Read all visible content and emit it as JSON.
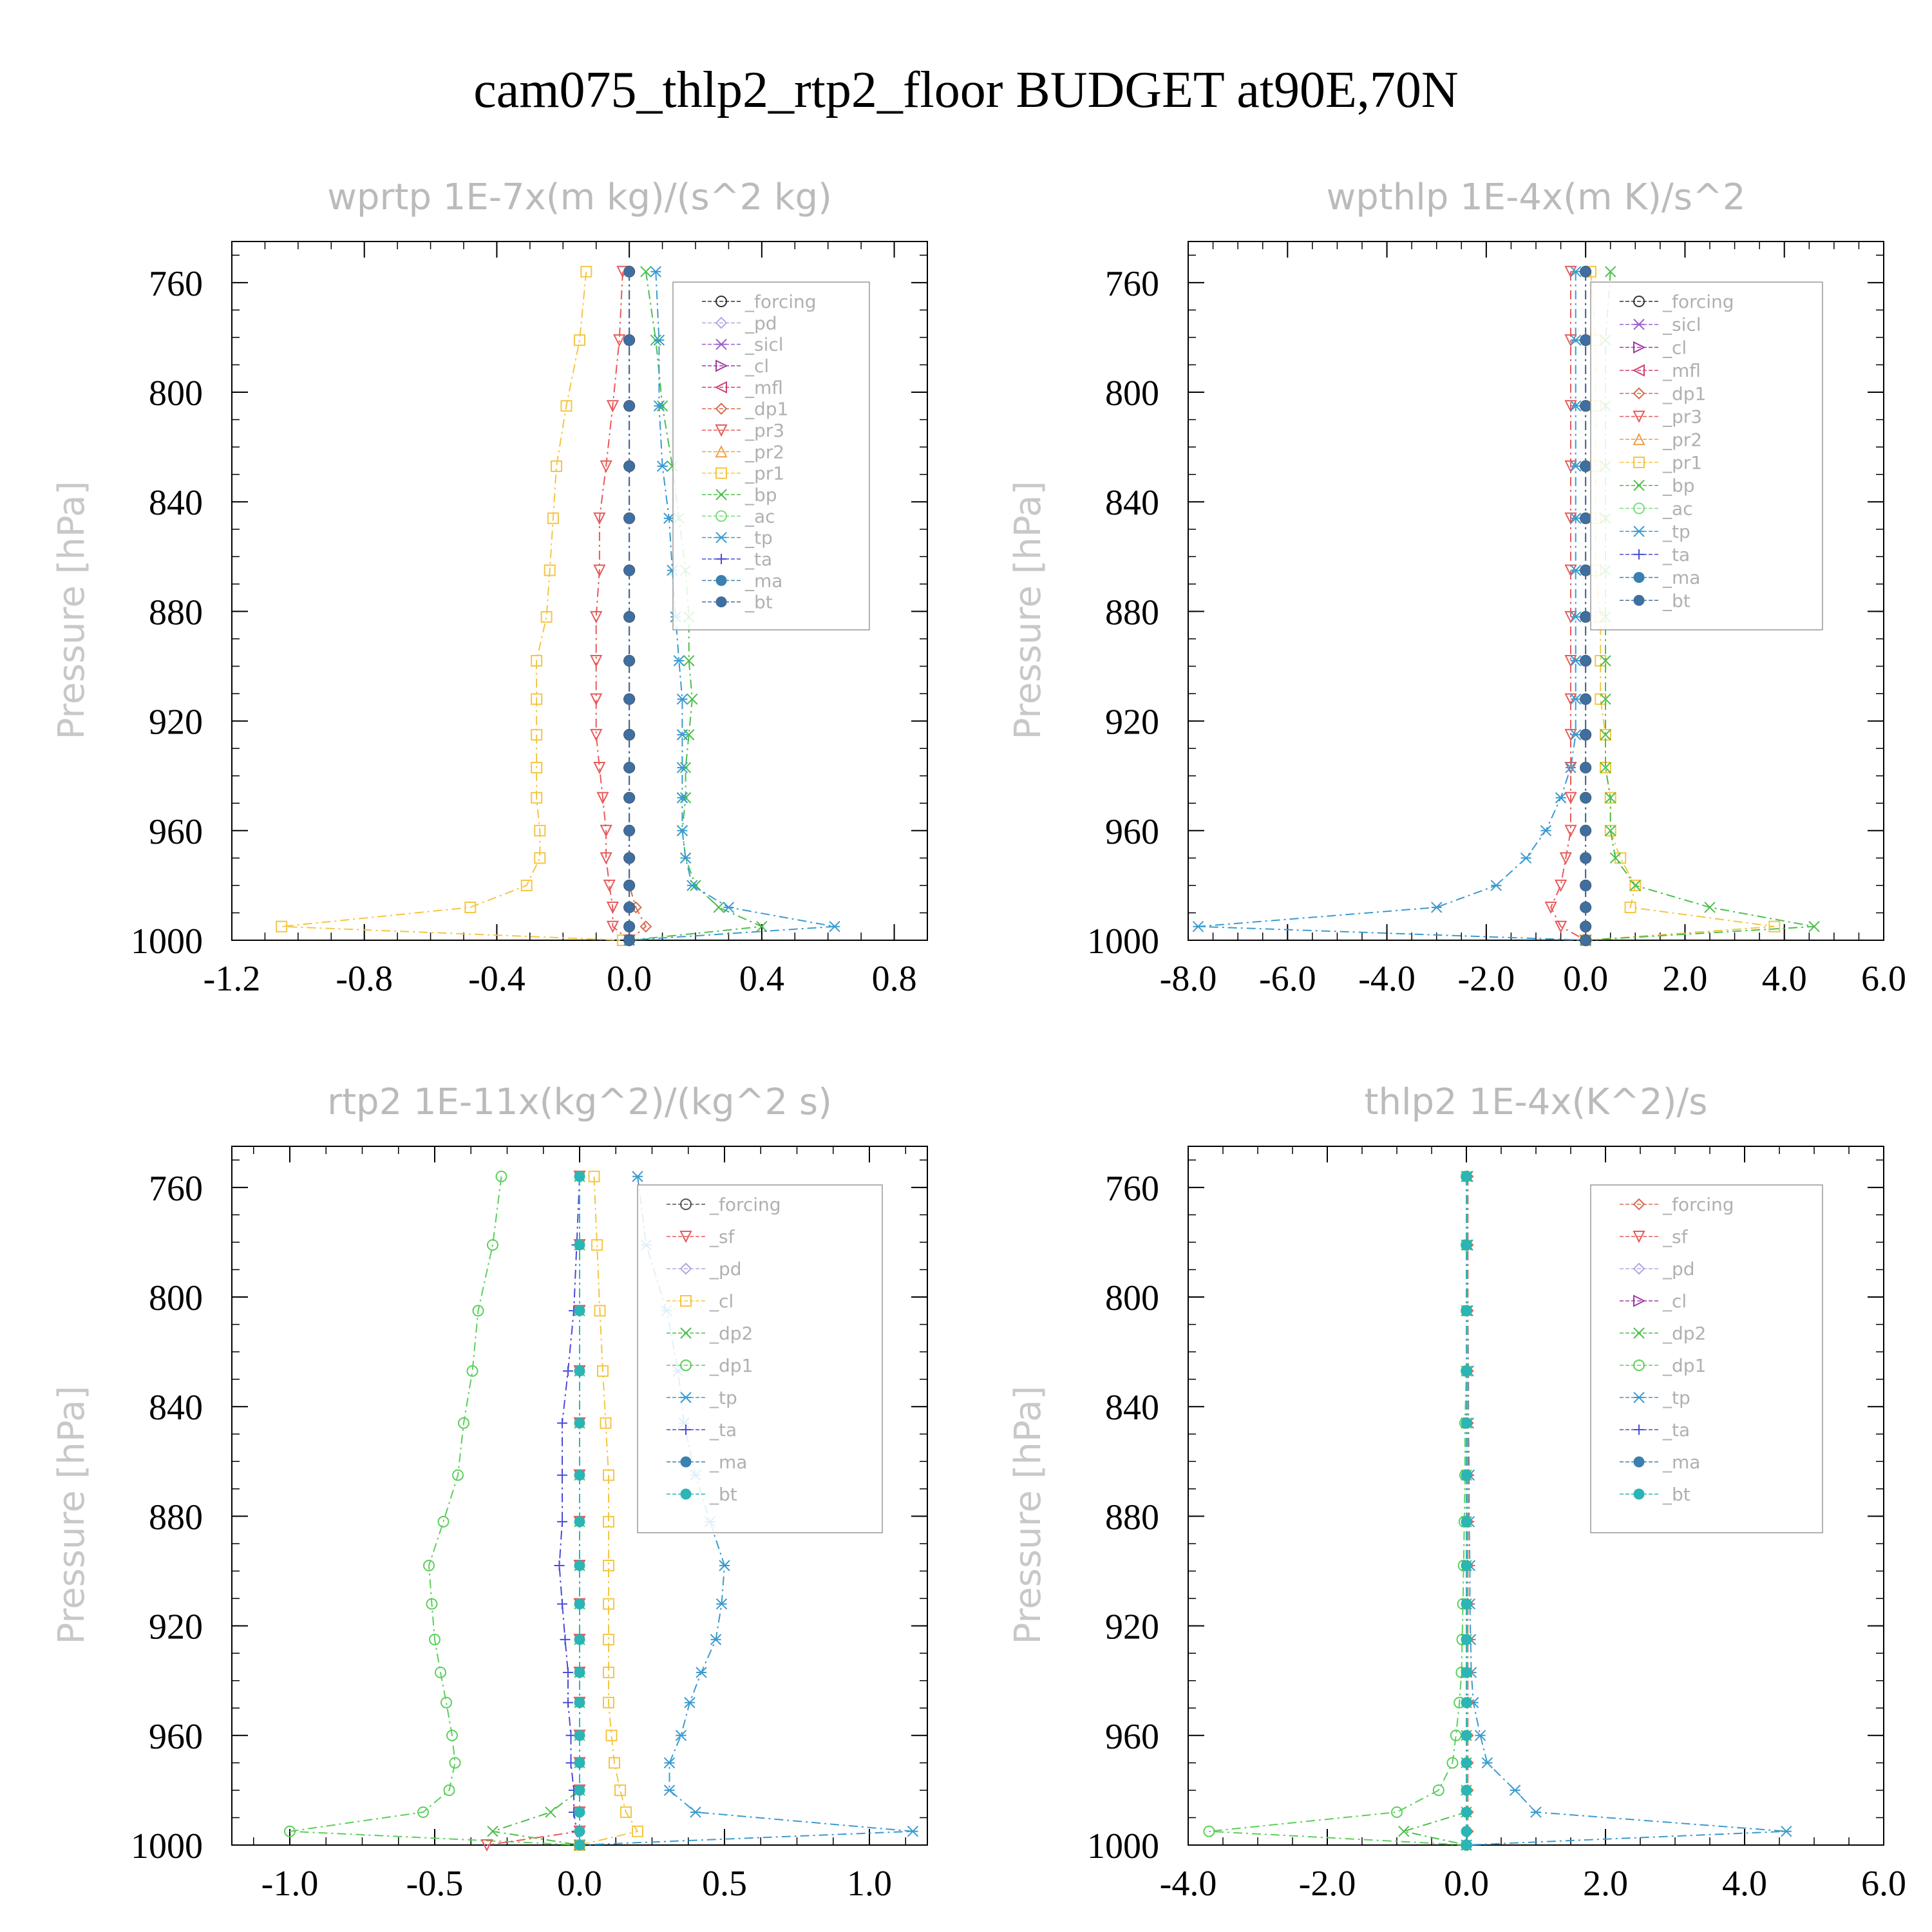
{
  "figure_title": "cam075_thlp2_rtp2_floor  BUDGET at90E,70N",
  "chart_data": [
    {
      "type": "line",
      "title": "wprtp   1E-7x(m kg)/(s^2 kg)",
      "ylabel": "Pressure  [hPa]",
      "xlim": [
        -1.2,
        0.9
      ],
      "ylim": [
        1000,
        745
      ],
      "xticks": [
        -1.2,
        -0.8,
        -0.4,
        0.0,
        0.4,
        0.8
      ],
      "xtick_labels": [
        "-1.2",
        "-0.8",
        "-0.4",
        "0.0",
        "0.4",
        "0.8"
      ],
      "yticks": [
        760,
        800,
        840,
        880,
        920,
        960,
        1000
      ],
      "ytick_labels": [
        "760",
        "800",
        "840",
        "880",
        "920",
        "960",
        "1000"
      ],
      "pressure": [
        756,
        781,
        805,
        827,
        846,
        865,
        882,
        898,
        912,
        925,
        937,
        948,
        960,
        970,
        980,
        988,
        995,
        1000
      ],
      "legend": [
        "_forcing",
        "_pd",
        "_sicl",
        "_cl",
        "_mfl",
        "_dp1",
        "_pr3",
        "_pr2",
        "_pr1",
        "_bp",
        "_ac",
        "_tp",
        "_ta",
        "_ma",
        "_bt"
      ],
      "series": [
        {
          "name": "_pr1",
          "color": "#f5c542",
          "marker": "square",
          "values": [
            -0.13,
            -0.15,
            -0.19,
            -0.22,
            -0.23,
            -0.24,
            -0.25,
            -0.28,
            -0.28,
            -0.28,
            -0.28,
            -0.28,
            -0.27,
            -0.27,
            -0.31,
            -0.48,
            -1.05,
            -0.02
          ]
        },
        {
          "name": "_pr3",
          "color": "#e85a5a",
          "marker": "tri-down",
          "values": [
            -0.02,
            -0.03,
            -0.05,
            -0.07,
            -0.09,
            -0.09,
            -0.1,
            -0.1,
            -0.1,
            -0.1,
            -0.09,
            -0.08,
            -0.07,
            -0.07,
            -0.06,
            -0.05,
            -0.05,
            0.0
          ]
        },
        {
          "name": "_dp1",
          "color": "#d86a50",
          "marker": "diamond",
          "values": [
            0.0,
            0.0,
            0.0,
            0.0,
            0.0,
            0.0,
            0.0,
            0.0,
            0.0,
            0.0,
            0.0,
            0.0,
            0.0,
            0.0,
            0.0,
            0.02,
            0.05,
            0.0
          ]
        },
        {
          "name": "_bp",
          "color": "#4cbf4c",
          "marker": "x",
          "values": [
            0.05,
            0.08,
            0.1,
            0.13,
            0.15,
            0.17,
            0.18,
            0.18,
            0.19,
            0.18,
            0.17,
            0.17,
            0.16,
            0.17,
            0.2,
            0.27,
            0.4,
            0.0
          ]
        },
        {
          "name": "_tp",
          "color": "#3a9bd0",
          "marker": "asterisk",
          "values": [
            0.08,
            0.09,
            0.09,
            0.1,
            0.12,
            0.13,
            0.14,
            0.15,
            0.16,
            0.16,
            0.16,
            0.16,
            0.16,
            0.17,
            0.19,
            0.3,
            0.62,
            0.0
          ]
        },
        {
          "name": "_forcing",
          "color": "#333333",
          "marker": "circle",
          "values": [
            0.0,
            0.0,
            0.0,
            0.0,
            0.0,
            0.0,
            0.0,
            0.0,
            0.0,
            0.0,
            0.0,
            0.0,
            0.0,
            0.0,
            0.0,
            0.0,
            0.0,
            0.0
          ]
        },
        {
          "name": "_bt",
          "color": "#3f6fa0",
          "marker": "dot",
          "values": [
            0.0,
            0.0,
            0.0,
            0.0,
            0.0,
            0.0,
            0.0,
            0.0,
            0.0,
            0.0,
            0.0,
            0.0,
            0.0,
            0.0,
            0.0,
            0.0,
            0.0,
            0.0
          ]
        }
      ]
    },
    {
      "type": "line",
      "title": "wpthlp   1E-4x(m K)/s^2",
      "ylabel": "Pressure  [hPa]",
      "xlim": [
        -8.0,
        6.0
      ],
      "ylim": [
        1000,
        745
      ],
      "xticks": [
        -8.0,
        -6.0,
        -4.0,
        -2.0,
        0.0,
        2.0,
        4.0,
        6.0
      ],
      "xtick_labels": [
        "-8.0",
        "-6.0",
        "-4.0",
        "-2.0",
        "0.0",
        "2.0",
        "4.0",
        "6.0"
      ],
      "yticks": [
        760,
        800,
        840,
        880,
        920,
        960,
        1000
      ],
      "ytick_labels": [
        "760",
        "800",
        "840",
        "880",
        "920",
        "960",
        "1000"
      ],
      "pressure": [
        756,
        781,
        805,
        827,
        846,
        865,
        882,
        898,
        912,
        925,
        937,
        948,
        960,
        970,
        980,
        988,
        995,
        1000
      ],
      "legend": [
        "_forcing",
        "_sicl",
        "_cl",
        "_mfl",
        "_dp1",
        "_pr3",
        "_pr2",
        "_pr1",
        "_bp",
        "_ac",
        "_tp",
        "_ta",
        "_ma",
        "_bt"
      ],
      "series": [
        {
          "name": "_pr3",
          "color": "#e85a5a",
          "marker": "tri-down",
          "values": [
            -0.3,
            -0.3,
            -0.3,
            -0.3,
            -0.3,
            -0.3,
            -0.3,
            -0.3,
            -0.3,
            -0.3,
            -0.3,
            -0.3,
            -0.3,
            -0.4,
            -0.5,
            -0.7,
            -0.5,
            0.0
          ]
        },
        {
          "name": "_pr1",
          "color": "#f5c542",
          "marker": "square",
          "values": [
            0.1,
            0.2,
            0.2,
            0.2,
            0.2,
            0.2,
            0.3,
            0.3,
            0.3,
            0.4,
            0.4,
            0.5,
            0.5,
            0.7,
            1.0,
            0.9,
            3.8,
            0.0
          ]
        },
        {
          "name": "_bp",
          "color": "#4cbf4c",
          "marker": "x",
          "values": [
            0.5,
            0.4,
            0.4,
            0.4,
            0.4,
            0.4,
            0.4,
            0.4,
            0.4,
            0.4,
            0.4,
            0.5,
            0.5,
            0.6,
            1.0,
            2.5,
            4.6,
            0.0
          ]
        },
        {
          "name": "_tp",
          "color": "#3a9bd0",
          "marker": "asterisk",
          "values": [
            -0.2,
            -0.2,
            -0.2,
            -0.2,
            -0.2,
            -0.2,
            -0.2,
            -0.2,
            -0.2,
            -0.2,
            -0.3,
            -0.5,
            -0.8,
            -1.2,
            -1.8,
            -3.0,
            -7.8,
            0.0
          ]
        },
        {
          "name": "_forcing",
          "color": "#333333",
          "marker": "circle",
          "values": [
            0.0,
            0.0,
            0.0,
            0.0,
            0.0,
            0.0,
            0.0,
            0.0,
            0.0,
            0.0,
            0.0,
            0.0,
            0.0,
            0.0,
            0.0,
            0.0,
            0.0,
            0.0
          ]
        },
        {
          "name": "_bt",
          "color": "#3f6fa0",
          "marker": "dot",
          "values": [
            0.0,
            0.0,
            0.0,
            0.0,
            0.0,
            0.0,
            0.0,
            0.0,
            0.0,
            0.0,
            0.0,
            0.0,
            0.0,
            0.0,
            0.0,
            0.0,
            0.0,
            0.0
          ]
        }
      ]
    },
    {
      "type": "line",
      "title": "rtp2   1E-11x(kg^2)/(kg^2 s)",
      "ylabel": "Pressure  [hPa]",
      "xlim": [
        -1.2,
        1.2
      ],
      "ylim": [
        1000,
        745
      ],
      "xticks": [
        -1.0,
        -0.5,
        0.0,
        0.5,
        1.0
      ],
      "xtick_labels": [
        "-1.0",
        "-0.5",
        "0.0",
        "0.5",
        "1.0"
      ],
      "yticks": [
        760,
        800,
        840,
        880,
        920,
        960,
        1000
      ],
      "ytick_labels": [
        "760",
        "800",
        "840",
        "880",
        "920",
        "960",
        "1000"
      ],
      "pressure": [
        756,
        781,
        805,
        827,
        846,
        865,
        882,
        898,
        912,
        925,
        937,
        948,
        960,
        970,
        980,
        988,
        995,
        1000
      ],
      "legend": [
        "_forcing",
        "_sf",
        "_pd",
        "_cl",
        "_dp2",
        "_dp1",
        "_tp",
        "_ta",
        "_ma",
        "_bt"
      ],
      "series": [
        {
          "name": "_dp1",
          "color": "#5ccf5c",
          "marker": "circle",
          "values": [
            -0.27,
            -0.3,
            -0.35,
            -0.37,
            -0.4,
            -0.42,
            -0.47,
            -0.52,
            -0.51,
            -0.5,
            -0.48,
            -0.46,
            -0.44,
            -0.43,
            -0.45,
            -0.54,
            -1.0,
            0.0
          ]
        },
        {
          "name": "_dp2",
          "color": "#4cbf4c",
          "marker": "x",
          "values": [
            0.0,
            0.0,
            0.0,
            0.0,
            0.0,
            0.0,
            0.0,
            0.0,
            0.0,
            0.0,
            0.0,
            0.0,
            0.0,
            0.0,
            0.0,
            -0.1,
            -0.3,
            0.0
          ]
        },
        {
          "name": "_cl",
          "color": "#f5c542",
          "marker": "square",
          "values": [
            0.05,
            0.06,
            0.07,
            0.08,
            0.09,
            0.1,
            0.1,
            0.1,
            0.1,
            0.1,
            0.1,
            0.1,
            0.11,
            0.12,
            0.14,
            0.16,
            0.2,
            0.0
          ]
        },
        {
          "name": "_ta",
          "color": "#4a4ad8",
          "marker": "plus",
          "values": [
            0.0,
            -0.01,
            -0.02,
            -0.04,
            -0.06,
            -0.06,
            -0.06,
            -0.07,
            -0.06,
            -0.05,
            -0.04,
            -0.04,
            -0.03,
            -0.03,
            -0.02,
            -0.02,
            -0.01,
            0.0
          ]
        },
        {
          "name": "_tp",
          "color": "#3a9bd0",
          "marker": "asterisk",
          "values": [
            0.2,
            0.23,
            0.3,
            0.34,
            0.36,
            0.4,
            0.45,
            0.5,
            0.49,
            0.47,
            0.42,
            0.38,
            0.35,
            0.31,
            0.31,
            0.4,
            1.15,
            0.0
          ]
        },
        {
          "name": "_sf",
          "color": "#e85a5a",
          "marker": "tri-down",
          "values": [
            0.0,
            0.0,
            0.0,
            0.0,
            0.0,
            0.0,
            0.0,
            0.0,
            0.0,
            0.0,
            0.0,
            0.0,
            0.0,
            0.0,
            0.0,
            0.0,
            0.0,
            -0.32
          ]
        },
        {
          "name": "_bt",
          "color": "#2bb5b5",
          "marker": "dot",
          "values": [
            0.0,
            0.0,
            0.0,
            0.0,
            0.0,
            0.0,
            0.0,
            0.0,
            0.0,
            0.0,
            0.0,
            0.0,
            0.0,
            0.0,
            0.0,
            0.0,
            0.0,
            0.0
          ]
        }
      ]
    },
    {
      "type": "line",
      "title": "thlp2   1E-4x(K^2)/s",
      "ylabel": "Pressure  [hPa]",
      "xlim": [
        -4.0,
        6.0
      ],
      "ylim": [
        1000,
        745
      ],
      "xticks": [
        -4.0,
        -2.0,
        0.0,
        2.0,
        4.0,
        6.0
      ],
      "xtick_labels": [
        "-4.0",
        "-2.0",
        "0.0",
        "2.0",
        "4.0",
        "6.0"
      ],
      "yticks": [
        760,
        800,
        840,
        880,
        920,
        960,
        1000
      ],
      "ytick_labels": [
        "760",
        "800",
        "840",
        "880",
        "920",
        "960",
        "1000"
      ],
      "pressure": [
        756,
        781,
        805,
        827,
        846,
        865,
        882,
        898,
        912,
        925,
        937,
        948,
        960,
        970,
        980,
        988,
        995,
        1000
      ],
      "legend": [
        "_forcing",
        "_sf",
        "_pd",
        "_cl",
        "_dp2",
        "_dp1",
        "_tp",
        "_ta",
        "_ma",
        "_bt"
      ],
      "series": [
        {
          "name": "_dp1",
          "color": "#5ccf5c",
          "marker": "circle",
          "values": [
            0.0,
            0.0,
            0.0,
            0.0,
            -0.02,
            -0.02,
            -0.03,
            -0.04,
            -0.05,
            -0.06,
            -0.07,
            -0.1,
            -0.15,
            -0.2,
            -0.4,
            -1.0,
            -3.7,
            0.0
          ]
        },
        {
          "name": "_dp2",
          "color": "#4cbf4c",
          "marker": "x",
          "values": [
            0.0,
            0.0,
            0.0,
            0.0,
            0.0,
            0.0,
            0.0,
            0.0,
            0.0,
            0.0,
            0.0,
            0.0,
            0.0,
            0.0,
            0.0,
            0.0,
            -0.9,
            0.0
          ]
        },
        {
          "name": "_tp",
          "color": "#3a9bd0",
          "marker": "asterisk",
          "values": [
            0.02,
            0.02,
            0.02,
            0.03,
            0.03,
            0.04,
            0.04,
            0.05,
            0.05,
            0.06,
            0.07,
            0.1,
            0.2,
            0.3,
            0.7,
            1.0,
            4.6,
            0.0
          ]
        },
        {
          "name": "_forcing",
          "color": "#d86a50",
          "marker": "diamond",
          "values": [
            0.02,
            0.02,
            0.02,
            0.02,
            0.02,
            0.02,
            0.02,
            0.02,
            0.02,
            0.02,
            0.02,
            0.02,
            0.02,
            0.02,
            0.02,
            0.02,
            0.02,
            0.0
          ]
        },
        {
          "name": "_bt",
          "color": "#2bb5b5",
          "marker": "dot",
          "values": [
            0.0,
            0.0,
            0.0,
            0.0,
            0.0,
            0.0,
            0.0,
            0.0,
            0.0,
            0.0,
            0.0,
            0.0,
            0.0,
            0.0,
            0.0,
            0.0,
            0.0,
            0.0
          ]
        }
      ]
    }
  ]
}
